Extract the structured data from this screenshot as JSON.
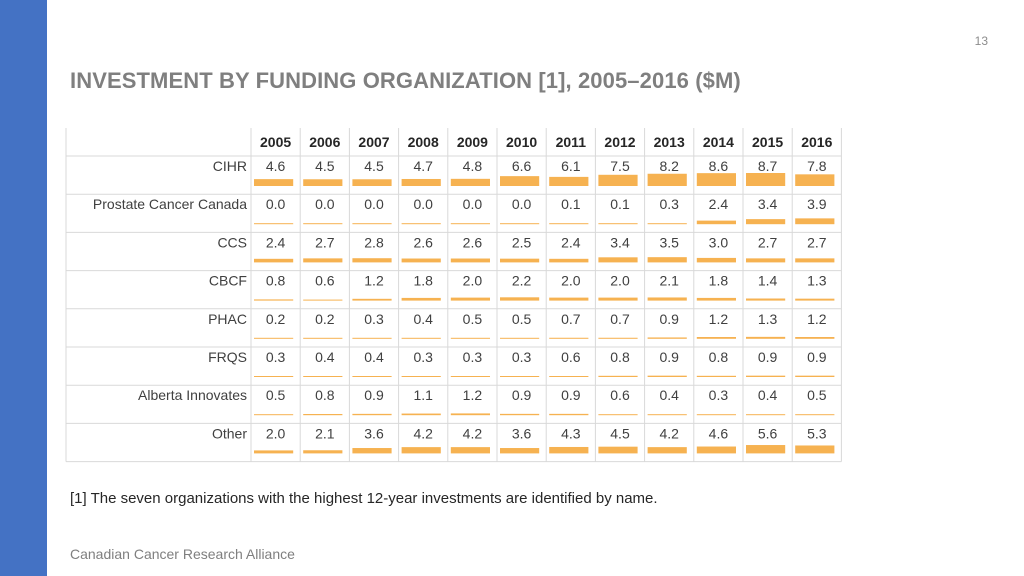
{
  "page_number": "13",
  "title": "INVESTMENT BY FUNDING ORGANIZATION [1], 2005–2016 ($M)",
  "footnote": "[1] The seven organizations with the highest 12-year investments are identified by name.",
  "brand": "Canadian Cancer Research Alliance",
  "colors": {
    "accent_bar": "#4472c4",
    "data_bar": "#f6b251",
    "grid": "#d9d9d9",
    "title": "#7f7f7f"
  },
  "chart_data": {
    "type": "table",
    "title": "INVESTMENT BY FUNDING ORGANIZATION [1], 2005–2016 ($M)",
    "columns": [
      "2005",
      "2006",
      "2007",
      "2008",
      "2009",
      "2010",
      "2011",
      "2012",
      "2013",
      "2014",
      "2015",
      "2016"
    ],
    "rows": [
      {
        "label": "CIHR",
        "values": [
          "4.6",
          "4.5",
          "4.5",
          "4.7",
          "4.8",
          "6.6",
          "6.1",
          "7.5",
          "8.2",
          "8.6",
          "8.7",
          "7.8"
        ]
      },
      {
        "label": "Prostate Cancer Canada",
        "values": [
          "0.0",
          "0.0",
          "0.0",
          "0.0",
          "0.0",
          "0.0",
          "0.1",
          "0.1",
          "0.3",
          "2.4",
          "3.4",
          "3.9"
        ]
      },
      {
        "label": "CCS",
        "values": [
          "2.4",
          "2.7",
          "2.8",
          "2.6",
          "2.6",
          "2.5",
          "2.4",
          "3.4",
          "3.5",
          "3.0",
          "2.7",
          "2.7"
        ]
      },
      {
        "label": "CBCF",
        "values": [
          "0.8",
          "0.6",
          "1.2",
          "1.8",
          "2.0",
          "2.2",
          "2.0",
          "2.0",
          "2.1",
          "1.8",
          "1.4",
          "1.3"
        ]
      },
      {
        "label": "PHAC",
        "values": [
          "0.2",
          "0.2",
          "0.3",
          "0.4",
          "0.5",
          "0.5",
          "0.7",
          "0.7",
          "0.9",
          "1.2",
          "1.3",
          "1.2"
        ]
      },
      {
        "label": "FRQS",
        "values": [
          "0.3",
          "0.4",
          "0.4",
          "0.3",
          "0.3",
          "0.3",
          "0.6",
          "0.8",
          "0.9",
          "0.8",
          "0.9",
          "0.9"
        ]
      },
      {
        "label": "Alberta Innovates",
        "values": [
          "0.5",
          "0.8",
          "0.9",
          "1.1",
          "1.2",
          "0.9",
          "0.9",
          "0.6",
          "0.4",
          "0.3",
          "0.4",
          "0.5"
        ]
      },
      {
        "label": "Other",
        "values": [
          "2.0",
          "2.1",
          "3.6",
          "4.2",
          "4.2",
          "3.6",
          "4.3",
          "4.5",
          "4.2",
          "4.6",
          "5.6",
          "5.3"
        ]
      }
    ],
    "bar_scale_max": 8.7
  }
}
